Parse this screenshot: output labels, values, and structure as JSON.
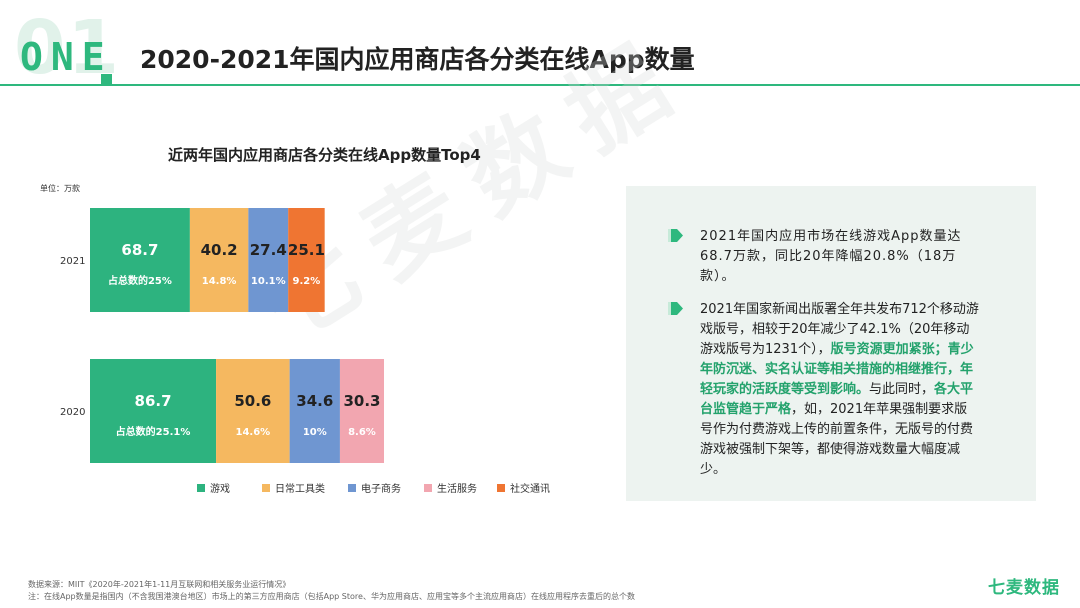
{
  "header": {
    "number": "01",
    "section": "ONE",
    "title": "2020-2021年国内应用商店各分类在线App数量"
  },
  "watermark": "七麦数据",
  "colors": {
    "accent": "#2eb87e",
    "game": "#2db37f",
    "tools": "#f5b860",
    "ecommerce": "#6f96d1",
    "life": "#f2a6b0",
    "social": "#ef7532"
  },
  "chart_data": {
    "type": "bar",
    "orientation": "horizontal",
    "stacked": true,
    "title": "近两年国内应用商店各分类在线App数量Top4",
    "unit": "单位：万款",
    "categories": [
      "2021",
      "2020"
    ],
    "series": [
      {
        "name": "游戏",
        "color": "#2db37f",
        "values": [
          68.7,
          86.7
        ],
        "labels": [
          "占总数的25%",
          "占总数的25.1%"
        ]
      },
      {
        "name": "日常工具类",
        "color": "#f5b860",
        "values": [
          40.2,
          50.6
        ],
        "labels": [
          "14.8%",
          "14.6%"
        ]
      },
      {
        "name": "电子商务",
        "color": "#6f96d1",
        "values": [
          27.4,
          34.6
        ],
        "labels": [
          "10.1%",
          "10%"
        ]
      },
      {
        "name": "生活服务",
        "color": "#f2a6b0",
        "values": [
          null,
          30.3
        ],
        "labels": [
          "",
          "8.6%"
        ]
      },
      {
        "name": "社交通讯",
        "color": "#ef7532",
        "values": [
          25.1,
          null
        ],
        "labels": [
          "9.2%",
          ""
        ]
      }
    ],
    "legend_position": "bottom",
    "grid": false
  },
  "panel": {
    "p1": "2021年国内应用市场在线游戏App数量达68.7万款，同比20年降幅20.8%（18万款）。",
    "p2_part1": "2021年国家新闻出版署全年共发布712个移动游戏版号，相较于20年减少了42.1%（20年移动游戏版号为1231个），",
    "p2_hl1": "版号资源更加紧张；青少年防沉迷、实名认证等相关措施的相继推行，年轻玩家的活跃度等受到影响。",
    "p2_part2": "与此同时，",
    "p2_hl2": "各大平台监管趋于严格",
    "p2_part3": "，如，2021年苹果强制要求版号作为付费游戏上传的前置条件，无版号的付费游戏被强制下架等，都使得游戏数量大幅度减少。"
  },
  "footer": {
    "source": "数据来源：MIIT《2020年-2021年1-11月互联网和相关服务业运行情况》",
    "note": "注：在线App数量是指国内（不含我国港澳台地区）市场上的第三方应用商店（包括App Store、华为应用商店、应用宝等多个主流应用商店）在线应用程序去重后的总个数",
    "brand": "七麦数据"
  }
}
